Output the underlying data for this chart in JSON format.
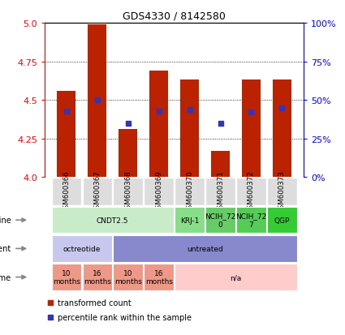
{
  "title": "GDS4330 / 8142580",
  "samples": [
    "GSM600366",
    "GSM600367",
    "GSM600368",
    "GSM600369",
    "GSM600370",
    "GSM600371",
    "GSM600372",
    "GSM600373"
  ],
  "bar_heights": [
    4.56,
    4.99,
    4.31,
    4.69,
    4.63,
    4.17,
    4.63,
    4.63
  ],
  "bar_bottoms": [
    4.0,
    4.0,
    4.0,
    4.0,
    4.0,
    4.0,
    4.0,
    4.0
  ],
  "blue_values": [
    4.43,
    4.5,
    4.35,
    4.43,
    4.44,
    4.35,
    4.42,
    4.45
  ],
  "ylim": [
    4.0,
    5.0
  ],
  "yticks_left": [
    4.0,
    4.25,
    4.5,
    4.75,
    5.0
  ],
  "yticks_right_labels": [
    "0%",
    "25%",
    "50%",
    "75%",
    "100%"
  ],
  "bar_color": "#bb2200",
  "blue_color": "#3333bb",
  "cell_line_groups": [
    {
      "label": "CNDT2.5",
      "start": 0,
      "end": 3,
      "color": "#c8ebc8"
    },
    {
      "label": "KRJ-1",
      "start": 4,
      "end": 4,
      "color": "#88dd88"
    },
    {
      "label": "NCIH_72\n0",
      "start": 5,
      "end": 5,
      "color": "#66cc66"
    },
    {
      "label": "NCIH_72\n7",
      "start": 6,
      "end": 6,
      "color": "#55cc55"
    },
    {
      "label": "QGP",
      "start": 7,
      "end": 7,
      "color": "#33cc33"
    }
  ],
  "agent_groups": [
    {
      "label": "octreotide",
      "start": 0,
      "end": 1,
      "color": "#c8c8ee"
    },
    {
      "label": "untreated",
      "start": 2,
      "end": 7,
      "color": "#8888cc"
    }
  ],
  "time_groups": [
    {
      "label": "10\nmonths",
      "start": 0,
      "end": 0,
      "color": "#ee9988"
    },
    {
      "label": "16\nmonths",
      "start": 1,
      "end": 1,
      "color": "#ee9988"
    },
    {
      "label": "10\nmonths",
      "start": 2,
      "end": 2,
      "color": "#ee9988"
    },
    {
      "label": "16\nmonths",
      "start": 3,
      "end": 3,
      "color": "#ee9988"
    },
    {
      "label": "n/a",
      "start": 4,
      "end": 7,
      "color": "#ffcccc"
    }
  ],
  "legend_items": [
    {
      "label": "transformed count",
      "color": "#bb2200"
    },
    {
      "label": "percentile rank within the sample",
      "color": "#3333bb"
    }
  ]
}
